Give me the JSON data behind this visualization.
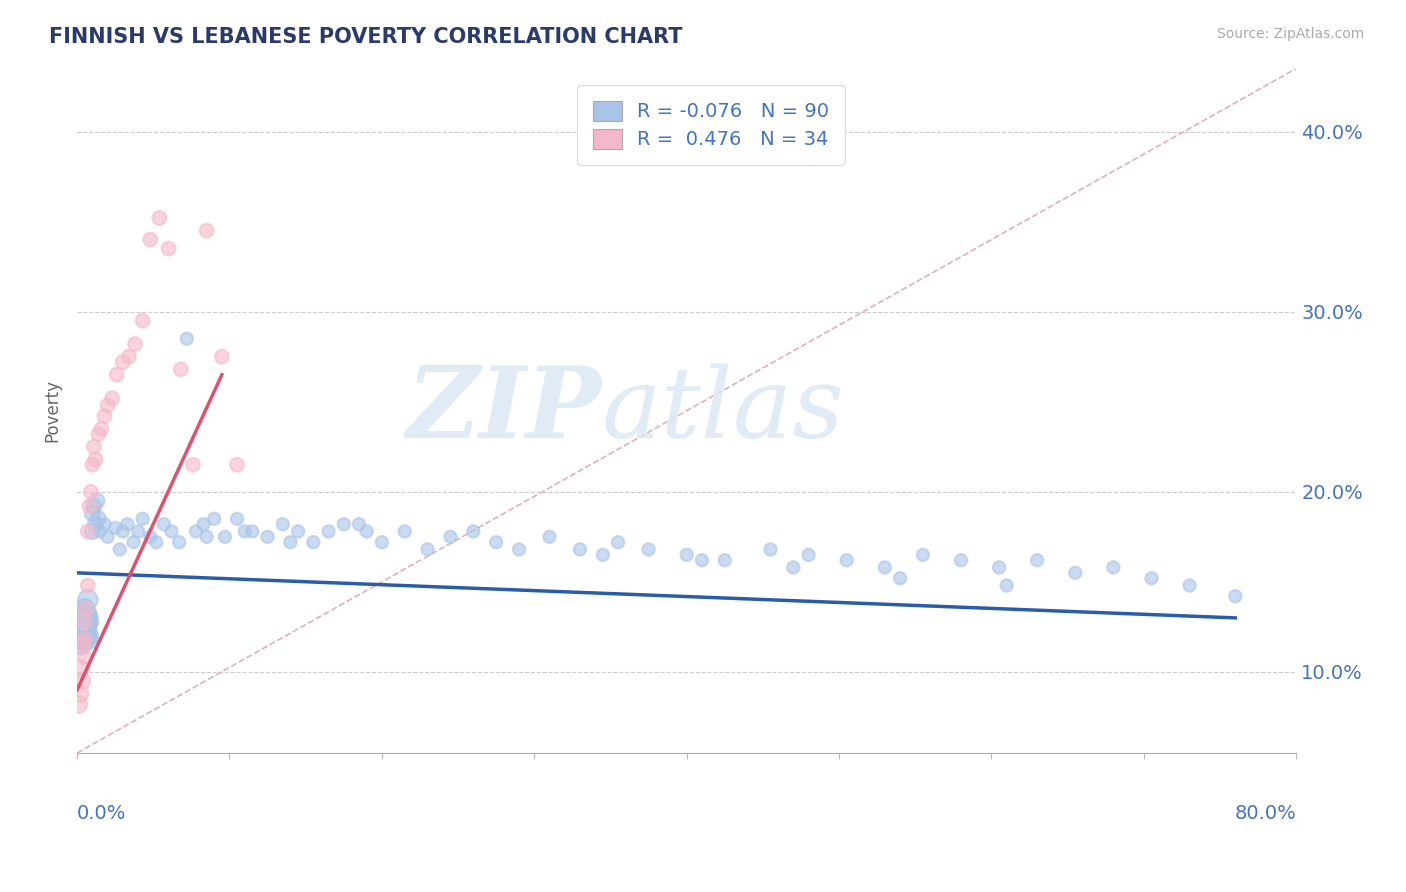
{
  "title": "FINNISH VS LEBANESE POVERTY CORRELATION CHART",
  "source": "Source: ZipAtlas.com",
  "ylabel": "Poverty",
  "yticks": [
    0.1,
    0.2,
    0.3,
    0.4
  ],
  "ytick_labels": [
    "10.0%",
    "20.0%",
    "30.0%",
    "40.0%"
  ],
  "xlim": [
    0.0,
    0.8
  ],
  "ylim": [
    0.055,
    0.435
  ],
  "legend_r_finn": "-0.076",
  "legend_n_finn": "90",
  "legend_r_leb": " 0.476",
  "legend_n_leb": "34",
  "color_finns": "#a8c4e8",
  "color_lebanese": "#f5b8c8",
  "color_finns_line": "#2a5caa",
  "color_lebanese_line": "#e05070",
  "color_diag_line": "#e0b0b8",
  "watermark_zip": "ZIP",
  "watermark_atlas": "atlas",
  "finns_x": [
    0.001,
    0.002,
    0.002,
    0.003,
    0.003,
    0.003,
    0.004,
    0.004,
    0.005,
    0.005,
    0.005,
    0.006,
    0.006,
    0.007,
    0.007,
    0.007,
    0.008,
    0.008,
    0.009,
    0.009,
    0.01,
    0.01,
    0.011,
    0.012,
    0.013,
    0.014,
    0.015,
    0.018,
    0.02,
    0.025,
    0.028,
    0.03,
    0.033,
    0.037,
    0.04,
    0.043,
    0.048,
    0.052,
    0.057,
    0.062,
    0.067,
    0.072,
    0.078,
    0.083,
    0.09,
    0.097,
    0.105,
    0.115,
    0.125,
    0.135,
    0.145,
    0.155,
    0.165,
    0.175,
    0.19,
    0.2,
    0.215,
    0.23,
    0.245,
    0.26,
    0.275,
    0.29,
    0.31,
    0.33,
    0.355,
    0.375,
    0.4,
    0.425,
    0.455,
    0.48,
    0.505,
    0.53,
    0.555,
    0.58,
    0.605,
    0.63,
    0.655,
    0.68,
    0.705,
    0.73,
    0.085,
    0.11,
    0.14,
    0.185,
    0.345,
    0.41,
    0.47,
    0.54,
    0.61,
    0.76
  ],
  "finns_y": [
    0.13,
    0.125,
    0.118,
    0.122,
    0.115,
    0.128,
    0.132,
    0.12,
    0.128,
    0.118,
    0.135,
    0.122,
    0.128,
    0.13,
    0.118,
    0.14,
    0.125,
    0.132,
    0.128,
    0.12,
    0.188,
    0.178,
    0.192,
    0.182,
    0.195,
    0.185,
    0.178,
    0.182,
    0.175,
    0.18,
    0.168,
    0.178,
    0.182,
    0.172,
    0.178,
    0.185,
    0.175,
    0.172,
    0.182,
    0.178,
    0.172,
    0.285,
    0.178,
    0.182,
    0.185,
    0.175,
    0.185,
    0.178,
    0.175,
    0.182,
    0.178,
    0.172,
    0.178,
    0.182,
    0.178,
    0.172,
    0.178,
    0.168,
    0.175,
    0.178,
    0.172,
    0.168,
    0.175,
    0.168,
    0.172,
    0.168,
    0.165,
    0.162,
    0.168,
    0.165,
    0.162,
    0.158,
    0.165,
    0.162,
    0.158,
    0.162,
    0.155,
    0.158,
    0.152,
    0.148,
    0.175,
    0.178,
    0.172,
    0.182,
    0.165,
    0.162,
    0.158,
    0.152,
    0.148,
    0.142
  ],
  "lebanese_x": [
    0.001,
    0.002,
    0.002,
    0.003,
    0.003,
    0.004,
    0.005,
    0.005,
    0.006,
    0.007,
    0.007,
    0.008,
    0.009,
    0.01,
    0.011,
    0.012,
    0.014,
    0.016,
    0.018,
    0.02,
    0.023,
    0.026,
    0.03,
    0.034,
    0.038,
    0.043,
    0.048,
    0.054,
    0.06,
    0.068,
    0.076,
    0.085,
    0.095,
    0.105
  ],
  "lebanese_y": [
    0.082,
    0.088,
    0.102,
    0.115,
    0.095,
    0.128,
    0.118,
    0.108,
    0.135,
    0.148,
    0.178,
    0.192,
    0.2,
    0.215,
    0.225,
    0.218,
    0.232,
    0.235,
    0.242,
    0.248,
    0.252,
    0.265,
    0.272,
    0.275,
    0.282,
    0.295,
    0.34,
    0.352,
    0.335,
    0.268,
    0.215,
    0.345,
    0.275,
    0.215
  ],
  "finns_line_x": [
    0.0,
    0.76
  ],
  "finns_line_y": [
    0.155,
    0.13
  ],
  "lebanese_line_x": [
    0.0,
    0.095
  ],
  "lebanese_line_y": [
    0.09,
    0.265
  ]
}
